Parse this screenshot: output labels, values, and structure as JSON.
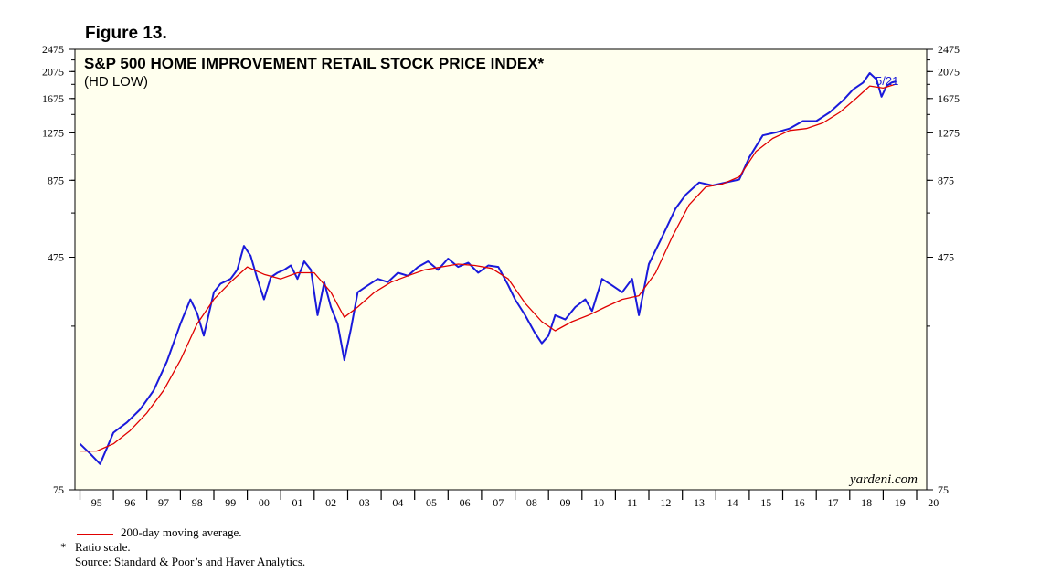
{
  "figure_label": "Figure 13.",
  "notes": {
    "legend": "200-day moving average.",
    "star": "*",
    "ratio": "Ratio scale.",
    "source": "Source: Standard & Poor’s and Haver Analytics."
  },
  "colors": {
    "plot_bg": "#ffffee",
    "index_line": "#1a1adb",
    "ma_line": "#e00000"
  },
  "chart_data": {
    "type": "line",
    "title": "S&P 500 HOME IMPROVEMENT RETAIL STOCK PRICE INDEX*",
    "subtitle": "(HD LOW)",
    "scale": "log",
    "ylim": [
      75,
      2475
    ],
    "xlim": [
      1994.85,
      2020.3
    ],
    "yticks": [
      75,
      475,
      875,
      1275,
      1675,
      2075,
      2475
    ],
    "xtick_labels": [
      "95",
      "96",
      "97",
      "98",
      "99",
      "00",
      "01",
      "02",
      "03",
      "04",
      "05",
      "06",
      "07",
      "08",
      "09",
      "10",
      "11",
      "12",
      "13",
      "14",
      "15",
      "16",
      "17",
      "18",
      "19",
      "20"
    ],
    "brand": "yardeni.com",
    "last_label": "5/21",
    "series": [
      {
        "name": "S&P 500 Home Improvement Retail Index",
        "color": "#1a1adb",
        "x": [
          1995.0,
          1995.3,
          1995.6,
          1996.0,
          1996.4,
          1996.8,
          1997.2,
          1997.6,
          1998.0,
          1998.3,
          1998.5,
          1998.7,
          1999.0,
          1999.2,
          1999.5,
          1999.7,
          1999.9,
          2000.1,
          2000.3,
          2000.5,
          2000.7,
          2000.9,
          2001.1,
          2001.3,
          2001.5,
          2001.7,
          2001.9,
          2002.1,
          2002.3,
          2002.5,
          2002.7,
          2002.9,
          2003.1,
          2003.3,
          2003.6,
          2003.9,
          2004.2,
          2004.5,
          2004.8,
          2005.1,
          2005.4,
          2005.7,
          2006.0,
          2006.3,
          2006.6,
          2006.9,
          2007.2,
          2007.5,
          2007.8,
          2008.0,
          2008.3,
          2008.6,
          2008.8,
          2009.0,
          2009.2,
          2009.5,
          2009.8,
          2010.1,
          2010.3,
          2010.6,
          2010.9,
          2011.2,
          2011.5,
          2011.7,
          2012.0,
          2012.4,
          2012.8,
          2013.1,
          2013.5,
          2013.9,
          2014.3,
          2014.7,
          2015.0,
          2015.4,
          2015.8,
          2016.2,
          2016.6,
          2017.0,
          2017.4,
          2017.8,
          2018.1,
          2018.4,
          2018.6,
          2018.8,
          2018.95,
          2019.1,
          2019.25,
          2019.39
        ],
        "values": [
          108,
          100,
          92,
          118,
          128,
          142,
          165,
          208,
          280,
          340,
          305,
          255,
          360,
          385,
          400,
          430,
          520,
          480,
          400,
          340,
          405,
          420,
          430,
          445,
          400,
          460,
          430,
          300,
          390,
          320,
          280,
          210,
          270,
          360,
          380,
          400,
          390,
          420,
          410,
          440,
          460,
          430,
          470,
          440,
          455,
          420,
          445,
          440,
          380,
          340,
          300,
          260,
          240,
          255,
          300,
          290,
          320,
          340,
          310,
          400,
          380,
          360,
          400,
          300,
          450,
          560,
          700,
          780,
          860,
          840,
          860,
          880,
          1050,
          1250,
          1280,
          1320,
          1400,
          1400,
          1500,
          1650,
          1800,
          1900,
          2050,
          1950,
          1700,
          1850,
          1900,
          1920
        ]
      },
      {
        "name": "200-day moving average",
        "color": "#e00000",
        "x": [
          1995.0,
          1995.5,
          1996.0,
          1996.5,
          1997.0,
          1997.5,
          1998.0,
          1998.5,
          1999.0,
          1999.5,
          2000.0,
          2000.5,
          2001.0,
          2001.5,
          2002.0,
          2002.5,
          2002.9,
          2003.3,
          2003.8,
          2004.3,
          2004.8,
          2005.3,
          2005.8,
          2006.3,
          2006.8,
          2007.3,
          2007.8,
          2008.3,
          2008.8,
          2009.2,
          2009.7,
          2010.2,
          2010.7,
          2011.2,
          2011.7,
          2012.2,
          2012.7,
          2013.2,
          2013.7,
          2014.2,
          2014.7,
          2015.2,
          2015.7,
          2016.2,
          2016.7,
          2017.2,
          2017.7,
          2018.2,
          2018.6,
          2019.0,
          2019.39
        ],
        "values": [
          102,
          102,
          108,
          120,
          138,
          165,
          210,
          280,
          340,
          390,
          440,
          415,
          400,
          420,
          420,
          360,
          295,
          320,
          360,
          390,
          410,
          430,
          440,
          450,
          445,
          435,
          400,
          330,
          285,
          265,
          285,
          300,
          320,
          340,
          350,
          420,
          560,
          720,
          830,
          850,
          900,
          1100,
          1220,
          1300,
          1320,
          1380,
          1500,
          1680,
          1850,
          1820,
          1880
        ]
      }
    ]
  }
}
